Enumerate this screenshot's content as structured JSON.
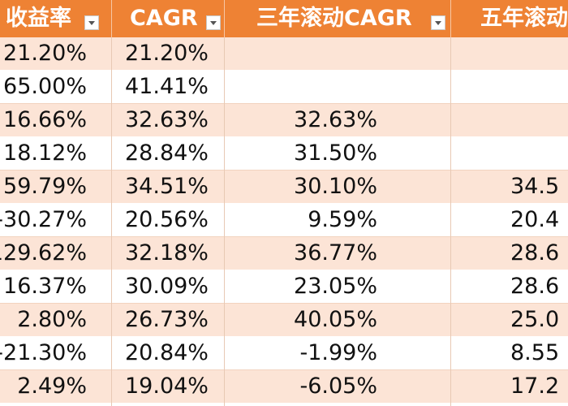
{
  "colors": {
    "header_bg": "#ee8234",
    "header_text": "#ffffff",
    "band_row": "#fce4d6",
    "plain_row": "#ffffff"
  },
  "header": {
    "col1": "收益率",
    "col2": "CAGR",
    "col3": "三年滚动CAGR",
    "col4": "五年滚动",
    "filter_icon": "dropdown-arrow-icon"
  },
  "rows": [
    {
      "col1": "21.20%",
      "col2": "21.20%",
      "col3": "",
      "col4": ""
    },
    {
      "col1": "65.00%",
      "col2": "41.41%",
      "col3": "",
      "col4": ""
    },
    {
      "col1": "16.66%",
      "col2": "32.63%",
      "col3": "32.63%",
      "col4": ""
    },
    {
      "col1": "18.12%",
      "col2": "28.84%",
      "col3": "31.50%",
      "col4": ""
    },
    {
      "col1": "59.79%",
      "col2": "34.51%",
      "col3": "30.10%",
      "col4": "34.5"
    },
    {
      "col1": "-30.27%",
      "col2": "20.56%",
      "col3": "9.59%",
      "col4": "20.4"
    },
    {
      "col1": "129.62%",
      "col2": "32.18%",
      "col3": "36.77%",
      "col4": "28.6"
    },
    {
      "col1": "16.37%",
      "col2": "30.09%",
      "col3": "23.05%",
      "col4": "28.6"
    },
    {
      "col1": "2.80%",
      "col2": "26.73%",
      "col3": "40.05%",
      "col4": "25.0"
    },
    {
      "col1": "-21.30%",
      "col2": "20.84%",
      "col3": "-1.99%",
      "col4": "8.55"
    },
    {
      "col1": "2.49%",
      "col2": "19.04%",
      "col3": "-6.05%",
      "col4": "17.2"
    }
  ]
}
